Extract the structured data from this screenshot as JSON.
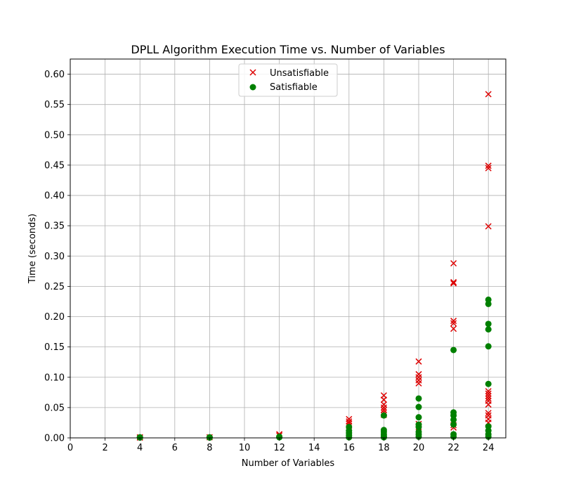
{
  "chart_data": {
    "type": "scatter",
    "title": "DPLL Algorithm Execution Time vs. Number of Variables",
    "xlabel": "Number of Variables",
    "ylabel": "Time (seconds)",
    "xlim": [
      0,
      25
    ],
    "ylim": [
      0,
      0.625
    ],
    "x_ticks": [
      "0",
      "2",
      "4",
      "6",
      "8",
      "10",
      "12",
      "14",
      "16",
      "18",
      "20",
      "22",
      "24"
    ],
    "y_ticks": [
      "0.00",
      "0.05",
      "0.10",
      "0.15",
      "0.20",
      "0.25",
      "0.30",
      "0.35",
      "0.40",
      "0.45",
      "0.50",
      "0.55",
      "0.60"
    ],
    "grid": true,
    "legend_position": "top-center",
    "series": [
      {
        "name": "Unsatisfiable",
        "marker": "x",
        "color": "#dd0000",
        "points": [
          [
            4,
            0.001
          ],
          [
            4,
            0.0005
          ],
          [
            8,
            0.001
          ],
          [
            12,
            0.004
          ],
          [
            12,
            0.006
          ],
          [
            16,
            0.031
          ],
          [
            16,
            0.027
          ],
          [
            16,
            0.024
          ],
          [
            16,
            0.02
          ],
          [
            18,
            0.07
          ],
          [
            18,
            0.063
          ],
          [
            18,
            0.055
          ],
          [
            18,
            0.05
          ],
          [
            18,
            0.046
          ],
          [
            18,
            0.042
          ],
          [
            18,
            0.038
          ],
          [
            20,
            0.126
          ],
          [
            20,
            0.105
          ],
          [
            20,
            0.1
          ],
          [
            20,
            0.095
          ],
          [
            20,
            0.09
          ],
          [
            20,
            0.023
          ],
          [
            20,
            0.018
          ],
          [
            22,
            0.288
          ],
          [
            22,
            0.257
          ],
          [
            22,
            0.255
          ],
          [
            22,
            0.193
          ],
          [
            22,
            0.189
          ],
          [
            22,
            0.18
          ],
          [
            22,
            0.021
          ],
          [
            22,
            0.017
          ],
          [
            24,
            0.567
          ],
          [
            24,
            0.449
          ],
          [
            24,
            0.445
          ],
          [
            24,
            0.349
          ],
          [
            24,
            0.077
          ],
          [
            24,
            0.073
          ],
          [
            24,
            0.069
          ],
          [
            24,
            0.065
          ],
          [
            24,
            0.061
          ],
          [
            24,
            0.055
          ],
          [
            24,
            0.041
          ],
          [
            24,
            0.037
          ],
          [
            24,
            0.031
          ],
          [
            24,
            0.025
          ]
        ]
      },
      {
        "name": "Satisfiable",
        "marker": "o",
        "color": "#008000",
        "points": [
          [
            4,
            0.001
          ],
          [
            4,
            0.0005
          ],
          [
            8,
            0.001
          ],
          [
            8,
            0.0005
          ],
          [
            12,
            0.001
          ],
          [
            12,
            0.002
          ],
          [
            16,
            0.018
          ],
          [
            16,
            0.012
          ],
          [
            16,
            0.008
          ],
          [
            16,
            0.004
          ],
          [
            16,
            0.001
          ],
          [
            18,
            0.037
          ],
          [
            18,
            0.013
          ],
          [
            18,
            0.01
          ],
          [
            18,
            0.006
          ],
          [
            18,
            0.003
          ],
          [
            18,
            0.001
          ],
          [
            20,
            0.065
          ],
          [
            20,
            0.051
          ],
          [
            20,
            0.034
          ],
          [
            20,
            0.022
          ],
          [
            20,
            0.018
          ],
          [
            20,
            0.01
          ],
          [
            20,
            0.006
          ],
          [
            20,
            0.002
          ],
          [
            22,
            0.145
          ],
          [
            22,
            0.042
          ],
          [
            22,
            0.037
          ],
          [
            22,
            0.03
          ],
          [
            22,
            0.022
          ],
          [
            22,
            0.006
          ],
          [
            22,
            0.002
          ],
          [
            24,
            0.228
          ],
          [
            24,
            0.221
          ],
          [
            24,
            0.188
          ],
          [
            24,
            0.179
          ],
          [
            24,
            0.151
          ],
          [
            24,
            0.089
          ],
          [
            24,
            0.019
          ],
          [
            24,
            0.012
          ],
          [
            24,
            0.006
          ],
          [
            24,
            0.002
          ]
        ]
      }
    ]
  }
}
